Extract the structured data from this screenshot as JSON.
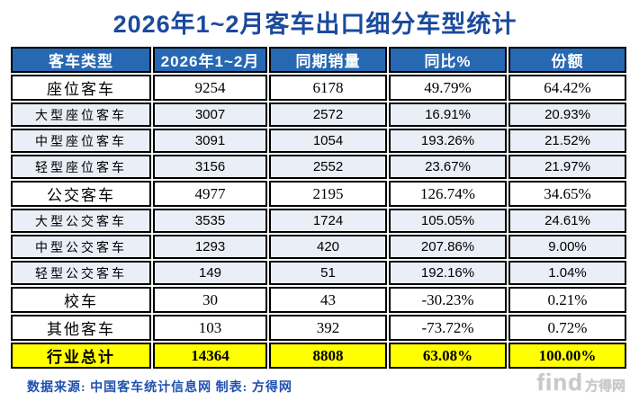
{
  "page": {
    "title": "2026年1~2月客车出口细分车型统计",
    "source_note": "数据来源: 中国客车统计信息网  制表: 方得网",
    "watermark": {
      "brand": "find",
      "site": "方得网"
    }
  },
  "table": {
    "columns": [
      "客车类型",
      "2026年1~2月",
      "同期销量",
      "同比%",
      "份额"
    ],
    "rows": [
      {
        "type": "座位客车",
        "current": "9254",
        "same_period": "6178",
        "yoy": "49.79%",
        "share": "64.42%",
        "style": "main"
      },
      {
        "type": "大型座位客车",
        "current": "3007",
        "same_period": "2572",
        "yoy": "16.91%",
        "share": "20.93%",
        "style": "sub"
      },
      {
        "type": "中型座位客车",
        "current": "3091",
        "same_period": "1054",
        "yoy": "193.26%",
        "share": "21.52%",
        "style": "sub"
      },
      {
        "type": "轻型座位客车",
        "current": "3156",
        "same_period": "2552",
        "yoy": "23.67%",
        "share": "21.97%",
        "style": "sub"
      },
      {
        "type": "公交客车",
        "current": "4977",
        "same_period": "2195",
        "yoy": "126.74%",
        "share": "34.65%",
        "style": "main"
      },
      {
        "type": "大型公交客车",
        "current": "3535",
        "same_period": "1724",
        "yoy": "105.05%",
        "share": "24.61%",
        "style": "sub"
      },
      {
        "type": "中型公交客车",
        "current": "1293",
        "same_period": "420",
        "yoy": "207.86%",
        "share": "9.00%",
        "style": "sub"
      },
      {
        "type": "轻型公交客车",
        "current": "149",
        "same_period": "51",
        "yoy": "192.16%",
        "share": "1.04%",
        "style": "sub"
      },
      {
        "type": "校车",
        "current": "30",
        "same_period": "43",
        "yoy": "-30.23%",
        "share": "0.21%",
        "style": "main"
      },
      {
        "type": "其他客车",
        "current": "103",
        "same_period": "392",
        "yoy": "-73.72%",
        "share": "0.72%",
        "style": "main"
      },
      {
        "type": "行业总计",
        "current": "14364",
        "same_period": "8808",
        "yoy": "63.08%",
        "share": "100.00%",
        "style": "total"
      }
    ]
  },
  "chart_data": {
    "type": "table",
    "title": "2026年1~2月客车出口细分车型统计",
    "columns": [
      "客车类型",
      "2026年1~2月",
      "同期销量",
      "同比%",
      "份额"
    ],
    "rows": [
      {
        "category": "座位客车",
        "current_2026": 9254,
        "same_period_prev": 6178,
        "yoy_pct": 49.79,
        "share_pct": 64.42,
        "level": "group"
      },
      {
        "category": "大型座位客车",
        "current_2026": 3007,
        "same_period_prev": 2572,
        "yoy_pct": 16.91,
        "share_pct": 20.93,
        "level": "sub"
      },
      {
        "category": "中型座位客车",
        "current_2026": 3091,
        "same_period_prev": 1054,
        "yoy_pct": 193.26,
        "share_pct": 21.52,
        "level": "sub"
      },
      {
        "category": "轻型座位客车",
        "current_2026": 3156,
        "same_period_prev": 2552,
        "yoy_pct": 23.67,
        "share_pct": 21.97,
        "level": "sub"
      },
      {
        "category": "公交客车",
        "current_2026": 4977,
        "same_period_prev": 2195,
        "yoy_pct": 126.74,
        "share_pct": 34.65,
        "level": "group"
      },
      {
        "category": "大型公交客车",
        "current_2026": 3535,
        "same_period_prev": 1724,
        "yoy_pct": 105.05,
        "share_pct": 24.61,
        "level": "sub"
      },
      {
        "category": "中型公交客车",
        "current_2026": 1293,
        "same_period_prev": 420,
        "yoy_pct": 207.86,
        "share_pct": 9.0,
        "level": "sub"
      },
      {
        "category": "轻型公交客车",
        "current_2026": 149,
        "same_period_prev": 51,
        "yoy_pct": 192.16,
        "share_pct": 1.04,
        "level": "sub"
      },
      {
        "category": "校车",
        "current_2026": 30,
        "same_period_prev": 43,
        "yoy_pct": -30.23,
        "share_pct": 0.21,
        "level": "group"
      },
      {
        "category": "其他客车",
        "current_2026": 103,
        "same_period_prev": 392,
        "yoy_pct": -73.72,
        "share_pct": 0.72,
        "level": "group"
      },
      {
        "category": "行业总计",
        "current_2026": 14364,
        "same_period_prev": 8808,
        "yoy_pct": 63.08,
        "share_pct": 100.0,
        "level": "total"
      }
    ]
  },
  "colors": {
    "header_bg": "#2768B3",
    "header_text": "#FFFFFF",
    "sub_row_bg": "#E9EEF7",
    "total_row_bg": "#FFFF00",
    "title_text": "#1B4A9E",
    "source_text": "#1E4FAE",
    "watermark_text": "#C9C9C9",
    "border": "#000000"
  }
}
